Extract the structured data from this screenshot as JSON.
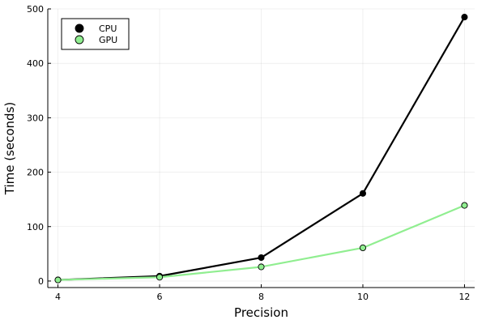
{
  "chart_data": {
    "type": "line",
    "title": "",
    "xlabel": "Precision",
    "ylabel": "Time (seconds)",
    "xlim": [
      3.8,
      12.2
    ],
    "ylim": [
      -12,
      500
    ],
    "xticks": [
      4,
      6,
      8,
      10,
      12
    ],
    "yticks": [
      0,
      100,
      200,
      300,
      400,
      500
    ],
    "grid": true,
    "legend_position": "top-left",
    "x": [
      4,
      6,
      8,
      10,
      12
    ],
    "series": [
      {
        "name": "CPU",
        "values": [
          2,
          9,
          43,
          161,
          485
        ],
        "color": "#000000",
        "marker": "circle"
      },
      {
        "name": "GPU",
        "values": [
          2,
          7,
          26,
          61,
          139
        ],
        "color": "#90ee90",
        "marker": "circle"
      }
    ]
  }
}
